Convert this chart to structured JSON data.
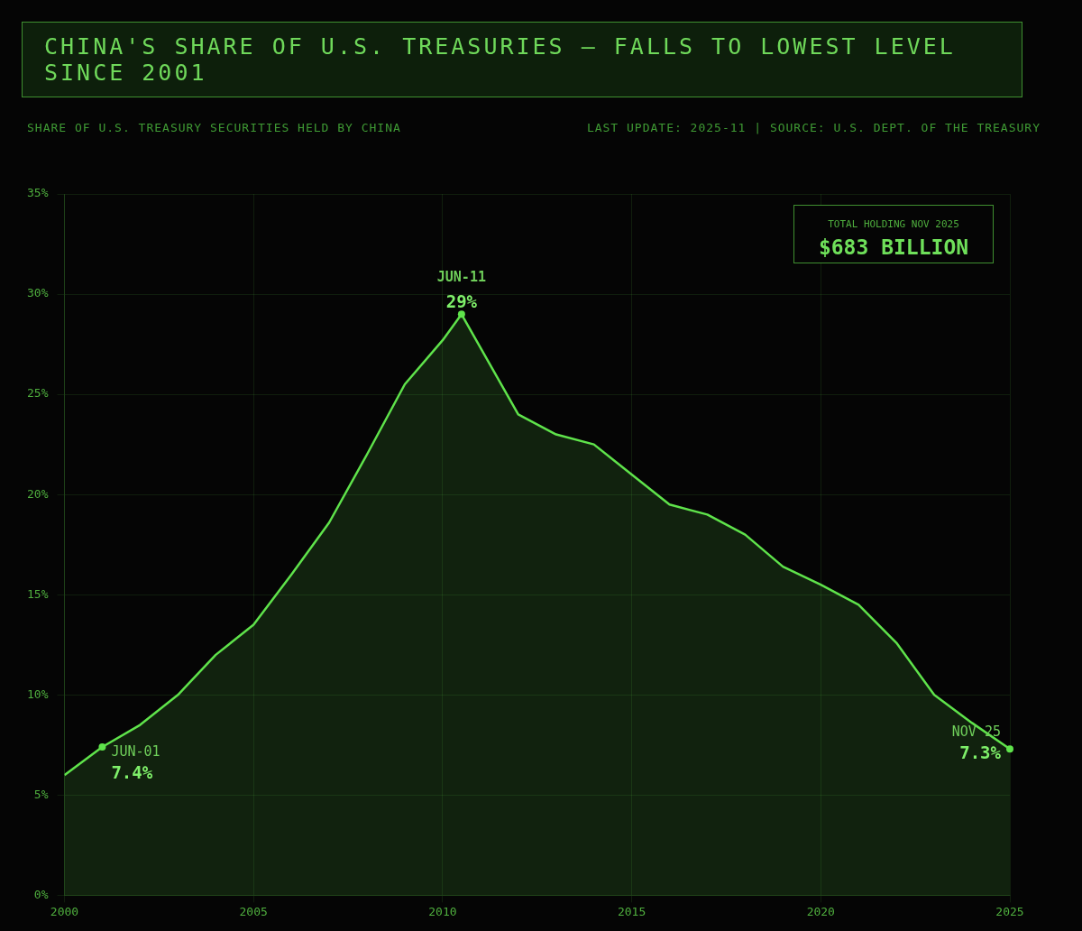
{
  "chart_data": {
    "type": "area",
    "title": "CHINA'S SHARE OF U.S. TREASURIES — FALLS TO LOWEST LEVEL SINCE 2001",
    "subtitle": "SHARE OF U.S. TREASURY SECURITIES HELD BY CHINA",
    "annotations": [
      "LAST UPDATE: 2025-11 | SOURCE: U.S. DEPT. OF THE TREASURY",
      "TOTAL HOLDING NOV 2025",
      "$683 BILLION",
      {
        "text": "JUN-01",
        "x": 2001,
        "y": 7.4
      },
      {
        "text": "7.4%",
        "x": 2001,
        "y": 7.4
      },
      {
        "text": "JUN-11",
        "x": 2010.5,
        "y": 29
      },
      {
        "text": "29%",
        "x": 2010.5,
        "y": 29
      },
      {
        "text": "NOV 25",
        "x": 2025,
        "y": 7.3
      },
      {
        "text": "7.3%",
        "x": 2025,
        "y": 7.3
      }
    ],
    "x": [
      2000,
      2001,
      2002,
      2003,
      2004,
      2005,
      2006,
      2007,
      2008,
      2009,
      2010,
      2010.5,
      2012,
      2013,
      2014,
      2015,
      2016,
      2017,
      2018,
      2019,
      2020,
      2021,
      2022,
      2023,
      2024,
      2025
    ],
    "series": [
      {
        "color": "#5fe34b",
        "values": [
          6.0,
          7.4,
          8.5,
          10.0,
          12.0,
          13.5,
          16.0,
          18.6,
          22.0,
          25.5,
          27.7,
          29.0,
          24.0,
          23.0,
          22.5,
          21.0,
          19.5,
          19.0,
          18.0,
          16.4,
          15.5,
          14.5,
          12.6,
          10.0,
          8.6,
          7.3
        ]
      }
    ],
    "xlim": [
      2000,
      2025
    ],
    "xticks": [
      2000,
      2005,
      2010,
      2015,
      2020,
      2025
    ],
    "ylim": [
      0,
      35
    ],
    "yticks": [
      {
        "value": 0,
        "label": "0%"
      },
      {
        "value": 5,
        "label": "5%"
      },
      {
        "value": 10,
        "label": "10%"
      },
      {
        "value": 15,
        "label": "15%"
      },
      {
        "value": 20,
        "label": "20%"
      },
      {
        "value": 25,
        "label": "25%"
      },
      {
        "value": 30,
        "label": "30%"
      },
      {
        "value": 35,
        "label": "35%"
      }
    ],
    "grid": true,
    "legend": false,
    "marker": "none",
    "line_style": "solid"
  }
}
